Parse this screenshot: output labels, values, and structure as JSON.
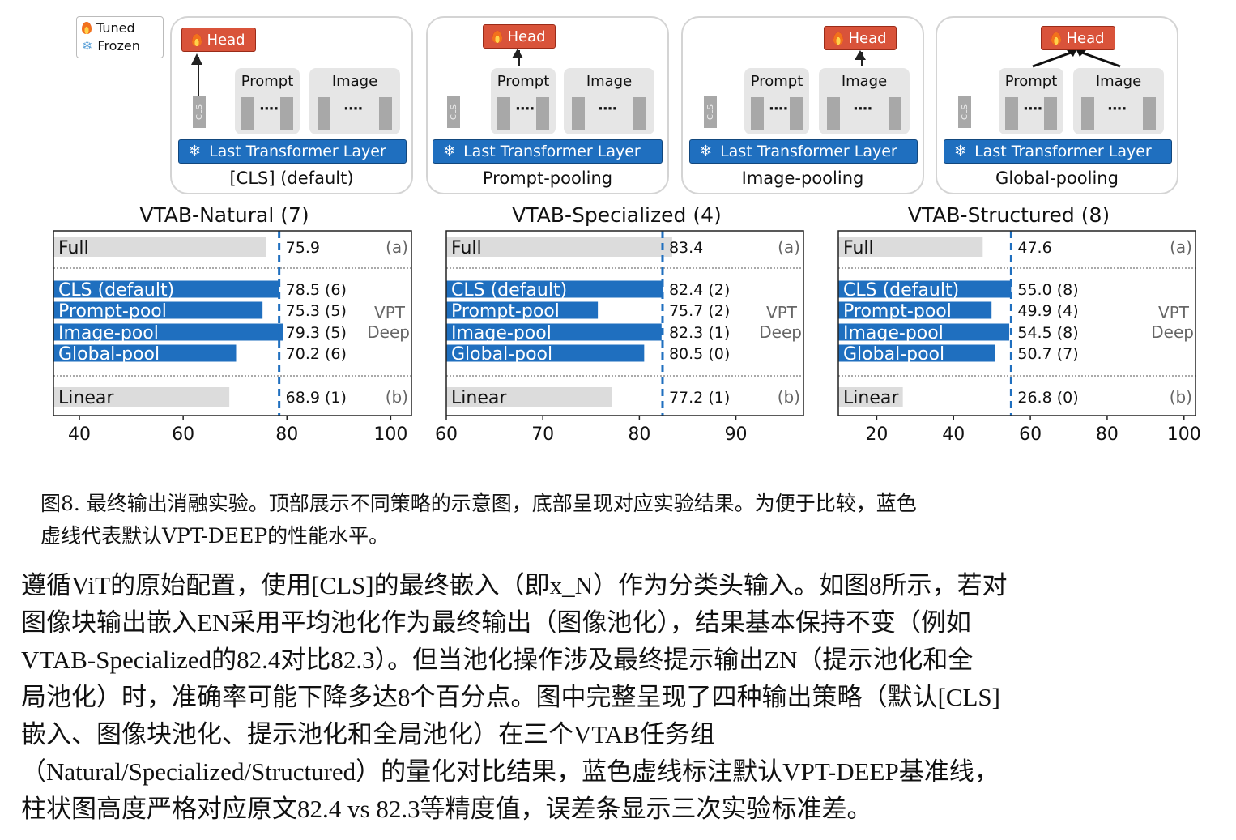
{
  "legend": {
    "tuned": "Tuned",
    "frozen": "Frozen",
    "icons": {
      "tuned": "fire-icon",
      "frozen": "snowflake-icon"
    }
  },
  "schemes": [
    {
      "caption": "[CLS] (default)",
      "head": "Head",
      "layer": "Last Transformer Layer",
      "prompt": "Prompt",
      "image": "Image",
      "cls": "CLS"
    },
    {
      "caption": "Prompt-pooling",
      "head": "Head",
      "layer": "Last Transformer Layer",
      "prompt": "Prompt",
      "image": "Image",
      "cls": "CLS"
    },
    {
      "caption": "Image-pooling",
      "head": "Head",
      "layer": "Last Transformer Layer",
      "prompt": "Prompt",
      "image": "Image",
      "cls": "CLS"
    },
    {
      "caption": "Global-pooling",
      "head": "Head",
      "layer": "Last Transformer Layer",
      "prompt": "Prompt",
      "image": "Image",
      "cls": "CLS"
    }
  ],
  "colors": {
    "vpt_bar": "#1f6fbf",
    "baseline_bar": "#dcdcdc",
    "reference_line": "#1f6fbf",
    "head": "#d9533a"
  },
  "chart_data": [
    {
      "type": "bar",
      "orientation": "horizontal",
      "title": "VTAB-Natural (7)",
      "xlim": [
        35,
        104
      ],
      "xticks": [
        40,
        60,
        80,
        100
      ],
      "reference_line": 78.5,
      "group_labels": {
        "a": "(a)",
        "vpt": "VPT",
        "deep": "Deep",
        "b": "(b)"
      },
      "rows": [
        {
          "label": "Full",
          "value": 75.9,
          "text": "75.9",
          "group": "a"
        },
        {
          "label": "CLS (default)",
          "value": 78.5,
          "text": "78.5 (6)",
          "group": "vpt"
        },
        {
          "label": "Prompt-pool",
          "value": 75.3,
          "text": "75.3 (5)",
          "group": "vpt"
        },
        {
          "label": "Image-pool",
          "value": 79.3,
          "text": "79.3 (5)",
          "group": "vpt"
        },
        {
          "label": "Global-pool",
          "value": 70.2,
          "text": "70.2 (6)",
          "group": "vpt"
        },
        {
          "label": "Linear",
          "value": 68.9,
          "text": "68.9 (1)",
          "group": "b"
        }
      ]
    },
    {
      "type": "bar",
      "orientation": "horizontal",
      "title": "VTAB-Specialized (4)",
      "xlim": [
        60,
        97
      ],
      "xticks": [
        60,
        70,
        80,
        90
      ],
      "reference_line": 82.4,
      "group_labels": {
        "a": "(a)",
        "vpt": "VPT",
        "deep": "Deep",
        "b": "(b)"
      },
      "rows": [
        {
          "label": "Full",
          "value": 83.4,
          "text": "83.4",
          "group": "a"
        },
        {
          "label": "CLS (default)",
          "value": 82.4,
          "text": "82.4 (2)",
          "group": "vpt"
        },
        {
          "label": "Prompt-pool",
          "value": 75.7,
          "text": "75.7 (2)",
          "group": "vpt"
        },
        {
          "label": "Image-pool",
          "value": 82.3,
          "text": "82.3 (1)",
          "group": "vpt"
        },
        {
          "label": "Global-pool",
          "value": 80.5,
          "text": "80.5 (0)",
          "group": "vpt"
        },
        {
          "label": "Linear",
          "value": 77.2,
          "text": "77.2 (1)",
          "group": "b"
        }
      ]
    },
    {
      "type": "bar",
      "orientation": "horizontal",
      "title": "VTAB-Structured (8)",
      "xlim": [
        10,
        103
      ],
      "xticks": [
        20,
        40,
        60,
        80,
        100
      ],
      "reference_line": 55.0,
      "group_labels": {
        "a": "(a)",
        "vpt": "VPT",
        "deep": "Deep",
        "b": "(b)"
      },
      "rows": [
        {
          "label": "Full",
          "value": 47.6,
          "text": "47.6",
          "group": "a"
        },
        {
          "label": "CLS (default)",
          "value": 55.0,
          "text": "55.0 (8)",
          "group": "vpt"
        },
        {
          "label": "Prompt-pool",
          "value": 49.9,
          "text": "49.9 (4)",
          "group": "vpt"
        },
        {
          "label": "Image-pool",
          "value": 54.5,
          "text": "54.5 (8)",
          "group": "vpt"
        },
        {
          "label": "Global-pool",
          "value": 50.7,
          "text": "50.7 (7)",
          "group": "vpt"
        },
        {
          "label": "Linear",
          "value": 26.8,
          "text": "26.8 (0)",
          "group": "b"
        }
      ]
    }
  ],
  "caption": {
    "line1": "图8. 最终输出消融实验。顶部展示不同策略的示意图，底部呈现对应实验结果。为便于比较，蓝色",
    "line2": "虚线代表默认VPT-DEEP的性能水平。"
  },
  "body": {
    "lines": [
      "遵循ViT的原始配置，使用[CLS]的最终嵌入（即x_N）作为分类头输入。如图8所示，若对",
      "图像块输出嵌入EN采用平均池化作为最终输出（图像池化），结果基本保持不变（例如",
      "VTAB-Specialized的82.4对比82.3）。但当池化操作涉及最终提示输出ZN（提示池化和全",
      "局池化）时，准确率可能下降多达8个百分点。图中完整呈现了四种输出策略（默认[CLS]",
      "嵌入、图像块池化、提示池化和全局池化）在三个VTAB任务组",
      "（Natural/Specialized/Structured）的量化对比结果，蓝色虚线标注默认VPT-DEEP基准线，",
      "柱状图高度严格对应原文82.4 vs 82.3等精度值，误差条显示三次实验标准差。"
    ]
  }
}
